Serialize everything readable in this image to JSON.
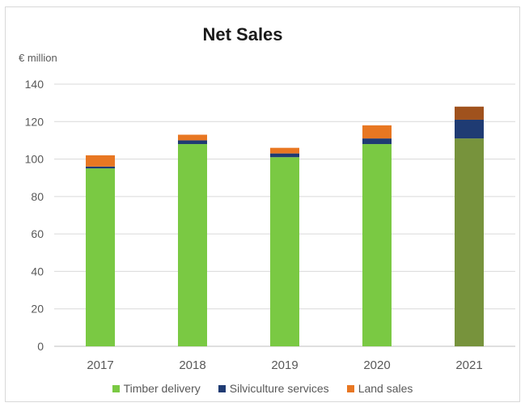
{
  "chart_data": {
    "type": "bar",
    "stacked": true,
    "title": "Net Sales",
    "unit_label": "€ million",
    "xlabel": "",
    "ylabel": "",
    "categories": [
      "2017",
      "2018",
      "2019",
      "2020",
      "2021"
    ],
    "ylim": [
      0,
      140
    ],
    "yticks": [
      0,
      20,
      40,
      60,
      80,
      100,
      120,
      140
    ],
    "grid": true,
    "legend_position": "bottom",
    "series": [
      {
        "name": "Timber  delivery",
        "color": "#7ac943",
        "values": [
          95,
          108,
          101,
          108,
          111
        ]
      },
      {
        "name": "Silviculture services",
        "color": "#1f3b73",
        "values": [
          1,
          2,
          2,
          3,
          10
        ]
      },
      {
        "name": "Land sales",
        "color": "#e87722",
        "values": [
          6,
          3,
          3,
          7,
          7
        ]
      }
    ],
    "highlight": {
      "category": "2021",
      "colors": [
        "#77933c",
        "#1f3b73",
        "#a0521d"
      ]
    }
  }
}
